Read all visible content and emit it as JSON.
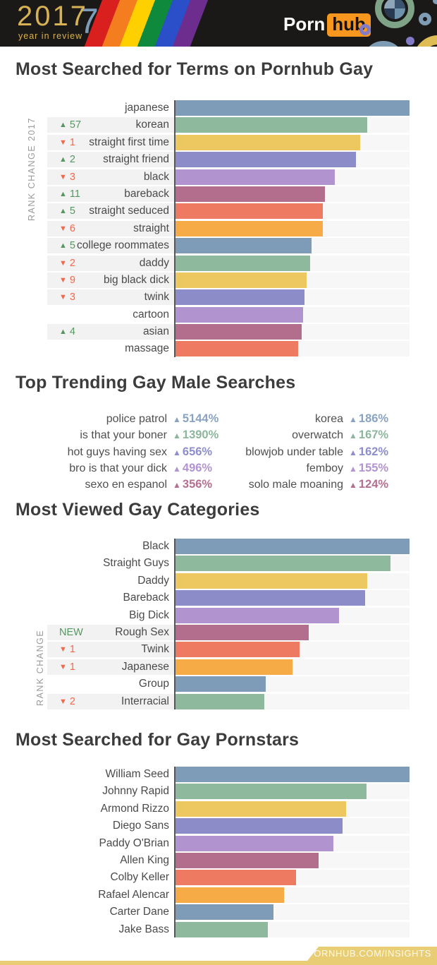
{
  "header": {
    "year": "2017",
    "year_accent": "7",
    "tagline": "year in review",
    "brand_porn": "Porn",
    "brand_hub": "hub"
  },
  "footer": {
    "label": "PORNHUB.COM/INSIGHTS"
  },
  "palette": {
    "bar_colors": [
      "#7E9CB8",
      "#8FB99D",
      "#EDC75F",
      "#8C8DC8",
      "#B093CF",
      "#B36E8E",
      "#EE7A61",
      "#F7AB47"
    ],
    "trend_colors": [
      "#8AA3C0",
      "#8CB79D",
      "#8E8ECC",
      "#B394D1",
      "#B56F92"
    ],
    "up_green": "#579663",
    "down_red": "#F2684C",
    "new_green": "#579663",
    "gold": "#E8CD74",
    "header_bg": "#1B1918",
    "band_gray": "#F2F2F2",
    "track_gray": "#F7F7F7",
    "title_gray": "#3C3C3C"
  },
  "chart_data": [
    {
      "type": "bar",
      "title": "Most Searched for Terms on Pornhub Gay",
      "axis_label": "RANK CHANGE 2017",
      "value_unit": "relative search volume, % of top term (estimated from bar lengths)",
      "xlim": [
        0,
        100
      ],
      "categories": [
        "japanese",
        "korean",
        "straight first time",
        "straight friend",
        "black",
        "bareback",
        "straight seduced",
        "straight",
        "college roommates",
        "daddy",
        "big black dick",
        "twink",
        "cartoon",
        "asian",
        "massage"
      ],
      "values": [
        100,
        82,
        79,
        77,
        68,
        64,
        63,
        63,
        58,
        57.5,
        56,
        55,
        54.5,
        54,
        52.5
      ],
      "rank_changes": [
        "",
        "+57",
        "-1",
        "+2",
        "-3",
        "+11",
        "+5",
        "-6",
        "+5",
        "-2",
        "-9",
        "-3",
        "",
        "+4",
        ""
      ]
    },
    {
      "type": "table",
      "title": "Top Trending Gay Male Searches",
      "columns": [
        [
          {
            "term": "police patrol",
            "change": "5144%"
          },
          {
            "term": "is that your boner",
            "change": "1390%"
          },
          {
            "term": "hot guys having sex",
            "change": "656%"
          },
          {
            "term": "bro is that your dick",
            "change": "496%"
          },
          {
            "term": "sexo en espanol",
            "change": "356%"
          }
        ],
        [
          {
            "term": "korea",
            "change": "186%"
          },
          {
            "term": "overwatch",
            "change": "167%"
          },
          {
            "term": "blowjob under table",
            "change": "162%"
          },
          {
            "term": "femboy",
            "change": "155%"
          },
          {
            "term": "solo male moaning",
            "change": "124%"
          }
        ]
      ]
    },
    {
      "type": "bar",
      "title": "Most Viewed Gay Categories",
      "axis_label": "RANK CHANGE",
      "value_unit": "relative views, % of top category (estimated from bar lengths)",
      "xlim": [
        0,
        100
      ],
      "categories": [
        "Black",
        "Straight Guys",
        "Daddy",
        "Bareback",
        "Big Dick",
        "Rough Sex",
        "Twink",
        "Japanese",
        "Group",
        "Interracial"
      ],
      "values": [
        100,
        92,
        82,
        81,
        70,
        57,
        53,
        50,
        38.5,
        38
      ],
      "rank_changes": [
        "",
        "",
        "",
        "",
        "",
        "NEW",
        "-1",
        "-1",
        "",
        "-2"
      ]
    },
    {
      "type": "bar",
      "title": "Most Searched for Gay Pornstars",
      "axis_label": "",
      "value_unit": "relative search volume, % of top pornstar (estimated from bar lengths)",
      "xlim": [
        0,
        100
      ],
      "categories": [
        "William Seed",
        "Johnny Rapid",
        "Armond Rizzo",
        "Diego Sans",
        "Paddy O'Brian",
        "Allen King",
        "Colby Keller",
        "Rafael Alencar",
        "Carter Dane",
        "Jake Bass"
      ],
      "values": [
        100,
        81.5,
        73,
        71.5,
        67.5,
        61,
        51.5,
        46.5,
        42,
        39.5
      ],
      "rank_changes": [
        "",
        "",
        "",
        "",
        "",
        "",
        "",
        "",
        "",
        ""
      ]
    }
  ]
}
